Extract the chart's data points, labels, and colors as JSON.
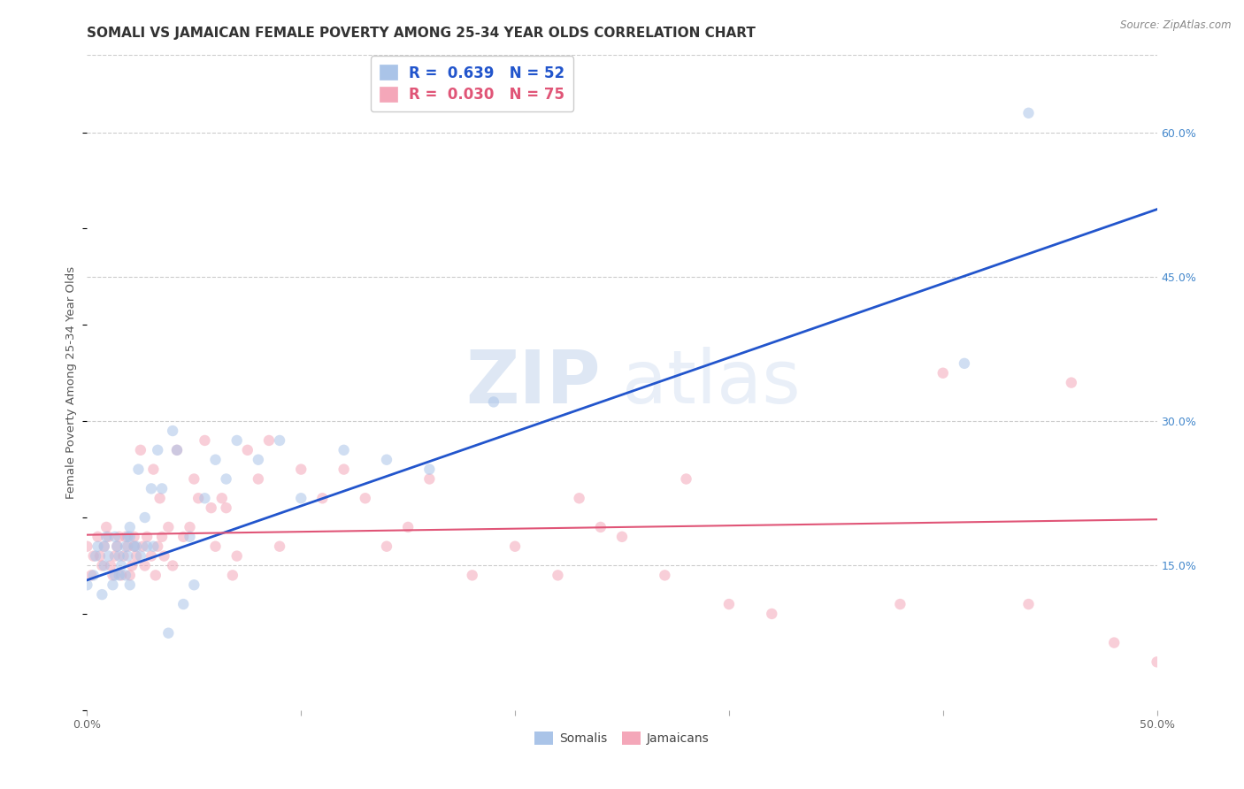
{
  "title": "SOMALI VS JAMAICAN FEMALE POVERTY AMONG 25-34 YEAR OLDS CORRELATION CHART",
  "source": "Source: ZipAtlas.com",
  "ylabel": "Female Poverty Among 25-34 Year Olds",
  "xlim": [
    0.0,
    0.5
  ],
  "ylim": [
    0.0,
    0.68
  ],
  "xticks": [
    0.0,
    0.1,
    0.2,
    0.3,
    0.4,
    0.5
  ],
  "xticklabels": [
    "0.0%",
    "",
    "",
    "",
    "",
    "50.0%"
  ],
  "yticks_right": [
    0.15,
    0.3,
    0.45,
    0.6
  ],
  "yticklabels_right": [
    "15.0%",
    "30.0%",
    "45.0%",
    "60.0%"
  ],
  "grid_color": "#cccccc",
  "background_color": "#ffffff",
  "watermark_zip": "ZIP",
  "watermark_atlas": "atlas",
  "somali_color": "#aac4e8",
  "jamaican_color": "#f4a7b9",
  "somali_line_color": "#2255cc",
  "jamaican_line_color": "#e05577",
  "somali_R": 0.639,
  "somali_N": 52,
  "jamaican_R": 0.03,
  "jamaican_N": 75,
  "somali_scatter_x": [
    0.0,
    0.003,
    0.004,
    0.005,
    0.007,
    0.008,
    0.008,
    0.009,
    0.01,
    0.012,
    0.013,
    0.013,
    0.014,
    0.015,
    0.015,
    0.016,
    0.018,
    0.018,
    0.019,
    0.019,
    0.02,
    0.02,
    0.02,
    0.022,
    0.023,
    0.024,
    0.025,
    0.027,
    0.028,
    0.03,
    0.031,
    0.033,
    0.035,
    0.038,
    0.04,
    0.042,
    0.045,
    0.048,
    0.05,
    0.055,
    0.06,
    0.065,
    0.07,
    0.08,
    0.09,
    0.1,
    0.12,
    0.14,
    0.16,
    0.19,
    0.41,
    0.44
  ],
  "somali_scatter_y": [
    0.13,
    0.14,
    0.16,
    0.17,
    0.12,
    0.15,
    0.17,
    0.18,
    0.16,
    0.13,
    0.14,
    0.18,
    0.17,
    0.14,
    0.16,
    0.15,
    0.14,
    0.17,
    0.16,
    0.18,
    0.13,
    0.18,
    0.19,
    0.17,
    0.17,
    0.25,
    0.16,
    0.2,
    0.17,
    0.23,
    0.17,
    0.27,
    0.23,
    0.08,
    0.29,
    0.27,
    0.11,
    0.18,
    0.13,
    0.22,
    0.26,
    0.24,
    0.28,
    0.26,
    0.28,
    0.22,
    0.27,
    0.26,
    0.25,
    0.32,
    0.36,
    0.62
  ],
  "jamaican_scatter_x": [
    0.0,
    0.002,
    0.003,
    0.005,
    0.006,
    0.007,
    0.008,
    0.009,
    0.01,
    0.011,
    0.012,
    0.013,
    0.014,
    0.015,
    0.016,
    0.017,
    0.018,
    0.019,
    0.02,
    0.021,
    0.022,
    0.022,
    0.023,
    0.025,
    0.026,
    0.027,
    0.028,
    0.03,
    0.031,
    0.032,
    0.033,
    0.034,
    0.035,
    0.036,
    0.038,
    0.04,
    0.042,
    0.045,
    0.048,
    0.05,
    0.052,
    0.055,
    0.058,
    0.06,
    0.063,
    0.065,
    0.068,
    0.07,
    0.075,
    0.08,
    0.085,
    0.09,
    0.1,
    0.11,
    0.12,
    0.13,
    0.14,
    0.15,
    0.16,
    0.18,
    0.2,
    0.22,
    0.23,
    0.24,
    0.25,
    0.27,
    0.28,
    0.3,
    0.32,
    0.38,
    0.4,
    0.44,
    0.46,
    0.48,
    0.5
  ],
  "jamaican_scatter_y": [
    0.17,
    0.14,
    0.16,
    0.18,
    0.16,
    0.15,
    0.17,
    0.19,
    0.18,
    0.15,
    0.14,
    0.16,
    0.17,
    0.18,
    0.14,
    0.16,
    0.18,
    0.17,
    0.14,
    0.15,
    0.18,
    0.17,
    0.16,
    0.27,
    0.17,
    0.15,
    0.18,
    0.16,
    0.25,
    0.14,
    0.17,
    0.22,
    0.18,
    0.16,
    0.19,
    0.15,
    0.27,
    0.18,
    0.19,
    0.24,
    0.22,
    0.28,
    0.21,
    0.17,
    0.22,
    0.21,
    0.14,
    0.16,
    0.27,
    0.24,
    0.28,
    0.17,
    0.25,
    0.22,
    0.25,
    0.22,
    0.17,
    0.19,
    0.24,
    0.14,
    0.17,
    0.14,
    0.22,
    0.19,
    0.18,
    0.14,
    0.24,
    0.11,
    0.1,
    0.11,
    0.35,
    0.11,
    0.34,
    0.07,
    0.05
  ],
  "somali_line_x": [
    0.0,
    0.5
  ],
  "somali_line_y": [
    0.135,
    0.52
  ],
  "jamaican_line_x": [
    0.0,
    0.5
  ],
  "jamaican_line_y": [
    0.182,
    0.198
  ],
  "marker_size": 80,
  "marker_alpha": 0.55,
  "title_fontsize": 11,
  "axis_label_fontsize": 9.5,
  "tick_fontsize": 9,
  "legend_fontsize": 12
}
